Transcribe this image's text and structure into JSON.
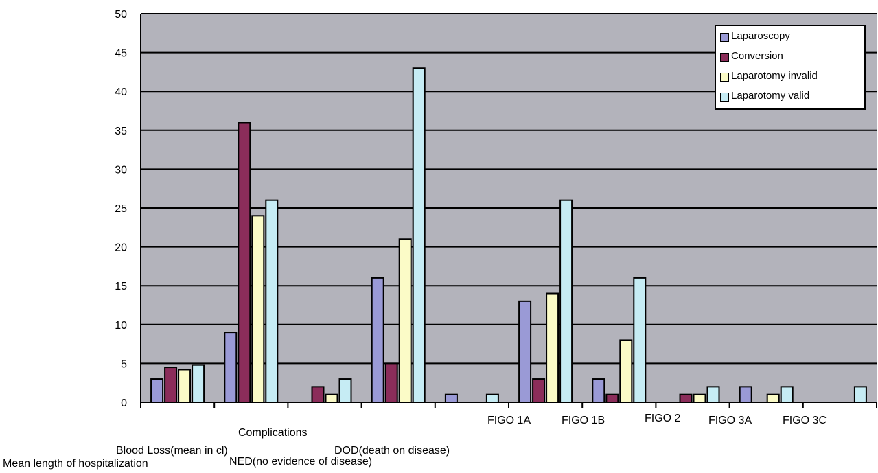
{
  "chart_data": {
    "type": "bar",
    "title": "",
    "xlabel": "",
    "ylabel": "",
    "ylim": [
      0,
      50
    ],
    "y_ticks": [
      "0",
      "5",
      "10",
      "15",
      "20",
      "25",
      "30",
      "35",
      "40",
      "45",
      "50"
    ],
    "grid": true,
    "legend_position": "top-right",
    "plot_background": "#b3b3bb",
    "categories": [
      "Mean length of hospitalization",
      "Blood Loss(mean in cl)",
      "Complications",
      "NED(no evidence of disease)",
      "DOD(death on disease)",
      "FIGO 1A",
      "FIGO 1B",
      "FIGO 2",
      "FIGO 3A",
      "FIGO 3C"
    ],
    "series": [
      {
        "name": "Laparoscopy",
        "color": "#9a9ad6",
        "values": [
          3,
          9,
          null,
          16,
          1,
          13,
          3,
          null,
          2,
          null
        ]
      },
      {
        "name": "Conversion",
        "color": "#8b2d5a",
        "values": [
          4.5,
          36,
          2,
          5,
          null,
          3,
          1,
          1,
          null,
          null
        ]
      },
      {
        "name": "Laparotomy invalid",
        "color": "#fbfbc7",
        "values": [
          4.2,
          24,
          1,
          21,
          null,
          14,
          8,
          1,
          1,
          null
        ]
      },
      {
        "name": "Laparotomy valid",
        "color": "#c6ecf4",
        "values": [
          4.8,
          26,
          3,
          43,
          1,
          26,
          16,
          2,
          2,
          2
        ]
      }
    ]
  }
}
